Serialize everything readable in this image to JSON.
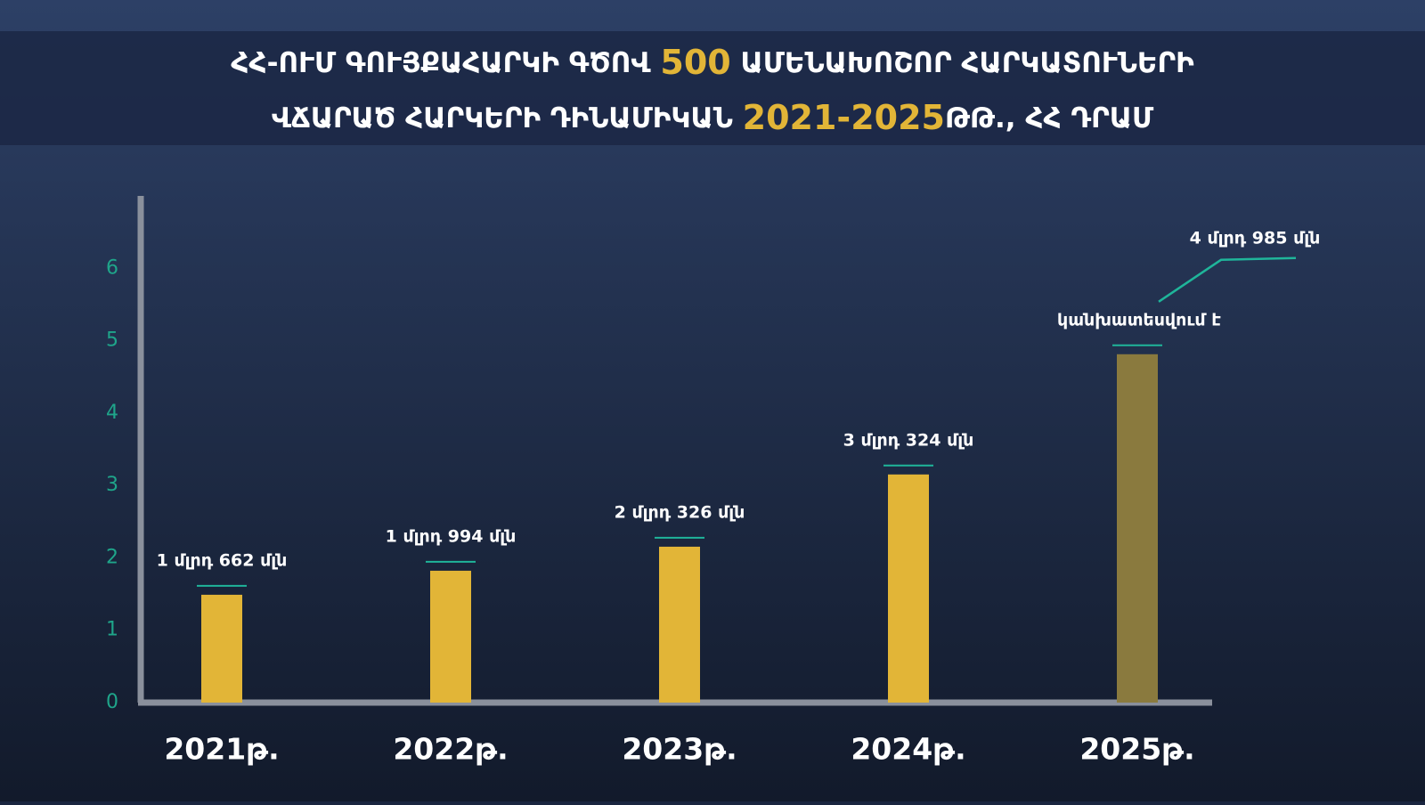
{
  "chart_data": {
    "type": "bar",
    "title_lines": [
      [
        {
          "text": "ՀՀ-ՈՒՄ ԳՈՒՅՔԱՀԱՐԿԻ ԳԾՈՎ ",
          "color": "#ffffff"
        },
        {
          "text": "500",
          "color": "#e2b537"
        },
        {
          "text": " ԱՄԵՆԱԽՈՇՈՐ ՀԱՐԿԱՏՈՒՆԵՐԻ",
          "color": "#ffffff"
        }
      ],
      [
        {
          "text": "ՎՃԱՐԱԾ ՀԱՐԿԵՐԻ ԴԻՆԱՄԻԿԱՆ ",
          "color": "#ffffff"
        },
        {
          "text": "2021-2025",
          "color": "#e2b537"
        },
        {
          "text": "ԹԹ., ՀՀ ԴՐԱՄ",
          "color": "#ffffff"
        }
      ]
    ],
    "categories": [
      "2021թ.",
      "2022թ.",
      "2023թ.",
      "2024թ.",
      "2025թ."
    ],
    "values": [
      1.662,
      1.994,
      2.326,
      3.324,
      4.985
    ],
    "value_labels": [
      "1 մլրդ 662 մլն",
      "1 մլրդ 994 մլն",
      "2 մլրդ 326 մլն",
      "3 մլրդ 324 մլն",
      "4 մլրդ 985 մլն"
    ],
    "colors": [
      "#e2b537",
      "#e2b537",
      "#e2b537",
      "#e2b537",
      "#8a7a3e"
    ],
    "annotation": "կանխատեսվում է",
    "ylim": [
      0,
      7
    ],
    "yticks": [
      0,
      1,
      2,
      3,
      4,
      5,
      6
    ],
    "tick_color": "#1fa58a",
    "accent_color": "#1fb59a"
  }
}
